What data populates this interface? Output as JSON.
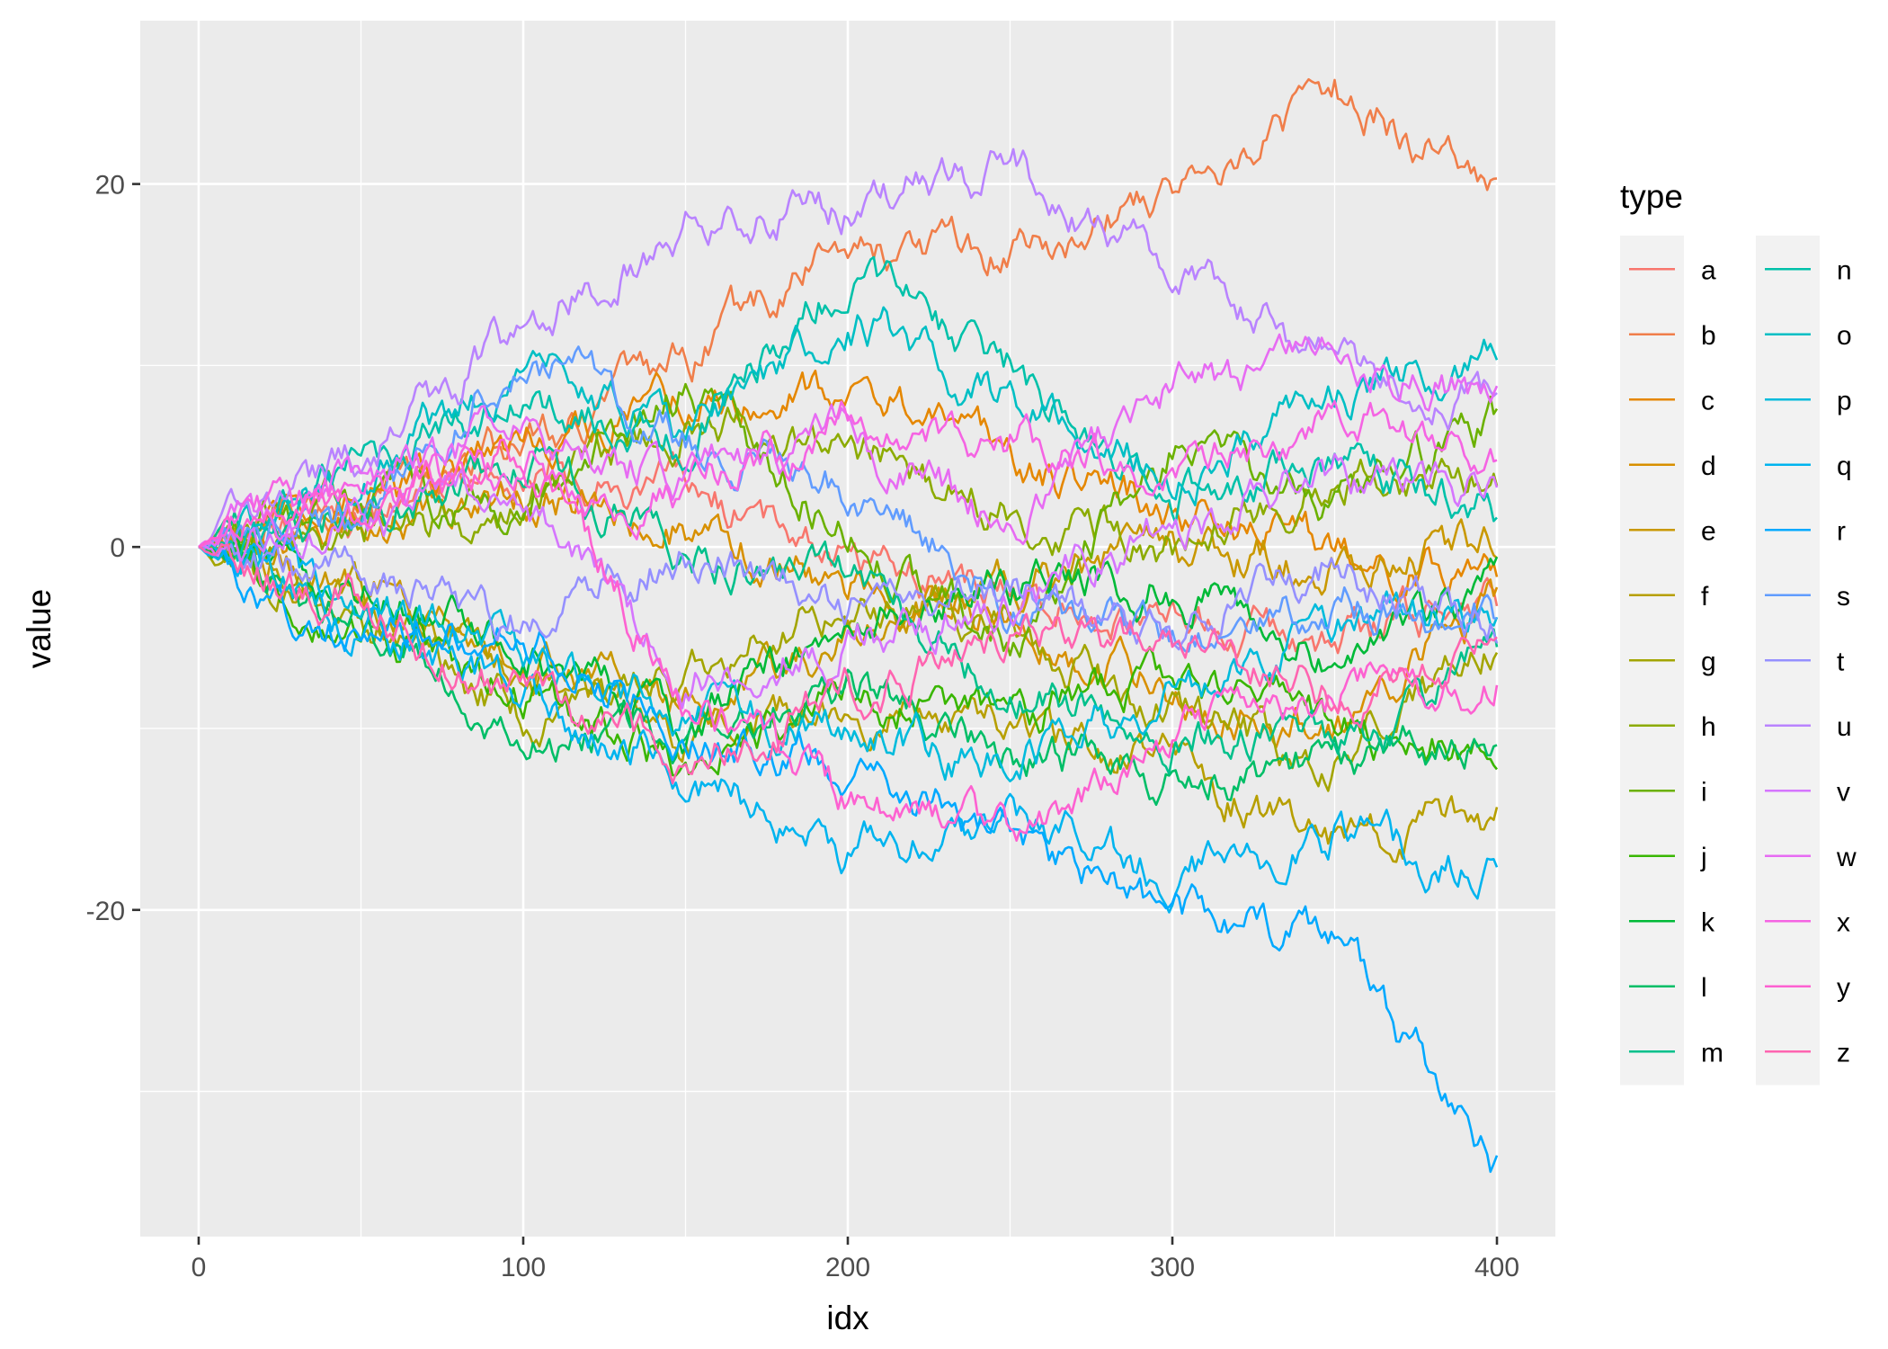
{
  "chart_data": {
    "type": "line",
    "xlabel": "idx",
    "ylabel": "value",
    "xlim": [
      -18,
      418
    ],
    "ylim": [
      -38,
      29
    ],
    "x_ticks": [
      0,
      100,
      200,
      300,
      400
    ],
    "x_tick_labels": [
      "0",
      "100",
      "200",
      "300",
      "400"
    ],
    "y_ticks": [
      20,
      0,
      -20
    ],
    "y_tick_labels": [
      "20",
      "0",
      "-20"
    ],
    "y_minor_ticks": [
      10,
      -10,
      -30
    ],
    "x_minor_ticks": [
      50,
      150,
      250,
      350
    ],
    "grid": true,
    "panel_background": "#ebebeb",
    "legend": {
      "title": "type",
      "placement": "right",
      "columns": 2
    },
    "x": [
      0,
      50,
      100,
      150,
      200,
      250,
      300,
      350,
      400
    ],
    "series": [
      {
        "name": "a",
        "color": "#F8766D",
        "values": [
          0,
          2,
          5,
          3,
          0,
          -3,
          -4,
          -5,
          -3
        ]
      },
      {
        "name": "b",
        "color": "#F07E4A",
        "values": [
          0,
          3,
          6,
          10,
          17,
          16,
          20,
          25,
          20
        ]
      },
      {
        "name": "c",
        "color": "#E58700",
        "values": [
          0,
          2,
          6,
          8,
          9,
          5,
          2,
          0,
          -2
        ]
      },
      {
        "name": "d",
        "color": "#D89000",
        "values": [
          0,
          1,
          3,
          1,
          -2,
          -4,
          -8,
          -10,
          -3
        ]
      },
      {
        "name": "e",
        "color": "#C99800",
        "values": [
          0,
          -2,
          -6,
          -9,
          -5,
          -2,
          0,
          -1,
          0
        ]
      },
      {
        "name": "f",
        "color": "#B79F00",
        "values": [
          0,
          -3,
          -7,
          -10,
          -9,
          -10,
          -12,
          -16,
          -15
        ]
      },
      {
        "name": "g",
        "color": "#A3A500",
        "values": [
          0,
          -4,
          -9,
          -7,
          -3,
          -4,
          -9,
          -12,
          -5
        ]
      },
      {
        "name": "h",
        "color": "#8CAB00",
        "values": [
          0,
          1,
          2,
          7,
          6,
          2,
          0,
          4,
          4
        ]
      },
      {
        "name": "i",
        "color": "#6BB100",
        "values": [
          0,
          3,
          2,
          9,
          1,
          -5,
          5,
          3,
          7
        ]
      },
      {
        "name": "j",
        "color": "#39B600",
        "values": [
          0,
          -5,
          -8,
          -12,
          -8,
          -9,
          -7,
          -10,
          -11
        ]
      },
      {
        "name": "k",
        "color": "#00BA38",
        "values": [
          0,
          -2,
          -6,
          -10,
          -4,
          -2,
          -2,
          -6,
          -2
        ]
      },
      {
        "name": "l",
        "color": "#00BE67",
        "values": [
          0,
          -4,
          -11,
          -10,
          -7,
          -11,
          -13,
          -12,
          -10
        ]
      },
      {
        "name": "m",
        "color": "#00C08B",
        "values": [
          0,
          2,
          5,
          0,
          -2,
          -8,
          -10,
          -11,
          -6
        ]
      },
      {
        "name": "n",
        "color": "#00C1A9",
        "values": [
          0,
          5,
          8,
          6,
          15,
          10,
          3,
          5,
          2
        ]
      },
      {
        "name": "o",
        "color": "#00BFC4",
        "values": [
          0,
          4,
          10,
          6,
          13,
          8,
          4,
          8,
          11
        ]
      },
      {
        "name": "p",
        "color": "#00BBDC",
        "values": [
          0,
          -3,
          -6,
          -9,
          -10,
          -12,
          -8,
          -4,
          -4
        ]
      },
      {
        "name": "q",
        "color": "#00B4EF",
        "values": [
          0,
          -4,
          -8,
          -12,
          -17,
          -15,
          -18,
          -16,
          -18
        ]
      },
      {
        "name": "r",
        "color": "#00A9FF",
        "values": [
          0,
          -5,
          -5,
          -10,
          -12,
          -16,
          -20,
          -22,
          -34
        ]
      },
      {
        "name": "s",
        "color": "#619CFF",
        "values": [
          0,
          2,
          11,
          6,
          3,
          -3,
          -5,
          -3,
          -4
        ]
      },
      {
        "name": "t",
        "color": "#9590FF",
        "values": [
          0,
          -2,
          -4,
          0,
          -3,
          -2,
          -5,
          -1,
          -4
        ]
      },
      {
        "name": "u",
        "color": "#B983FF",
        "values": [
          0,
          5,
          12,
          18,
          19,
          21,
          16,
          10,
          8
        ]
      },
      {
        "name": "v",
        "color": "#D575FE",
        "values": [
          0,
          1,
          3,
          -7,
          -5,
          -3,
          1,
          4,
          3
        ]
      },
      {
        "name": "w",
        "color": "#E76BF3",
        "values": [
          0,
          4,
          6,
          4,
          6,
          1,
          9,
          10,
          8
        ]
      },
      {
        "name": "x",
        "color": "#F564E3",
        "values": [
          0,
          3,
          4,
          3,
          7,
          6,
          4,
          7,
          6
        ]
      },
      {
        "name": "y",
        "color": "#FD61D1",
        "values": [
          0,
          2,
          5,
          -8,
          -14,
          -16,
          -10,
          -8,
          -7
        ]
      },
      {
        "name": "z",
        "color": "#FF64B0",
        "values": [
          0,
          -3,
          -8,
          -12,
          -8,
          -5,
          -5,
          -8,
          -5
        ]
      }
    ]
  }
}
